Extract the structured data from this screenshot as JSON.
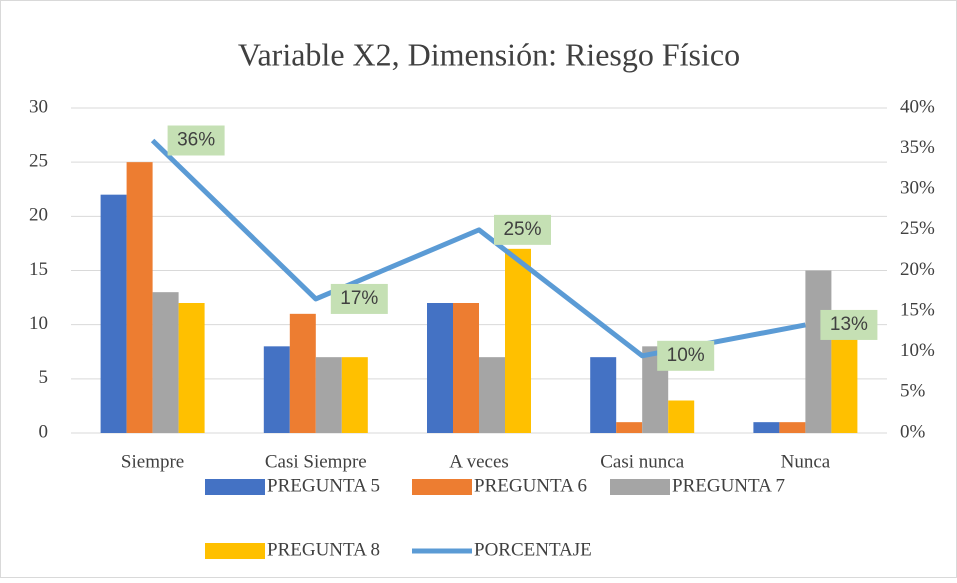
{
  "chart_data": {
    "type": "bar",
    "title": "Variable X2, Dimensión: Riesgo Físico",
    "categories": [
      "Siempre",
      "Casi Siempre",
      "A veces",
      "Casi nunca",
      "Nunca"
    ],
    "series": [
      {
        "name": "PREGUNTA 5",
        "color": "#4472c4",
        "values": [
          22,
          8,
          12,
          7,
          1
        ]
      },
      {
        "name": "PREGUNTA 6",
        "color": "#ed7d31",
        "values": [
          25,
          11,
          12,
          1,
          1
        ]
      },
      {
        "name": "PREGUNTA 7",
        "color": "#a5a5a5",
        "values": [
          13,
          7,
          7,
          8,
          15
        ]
      },
      {
        "name": "PREGUNTA 8",
        "color": "#ffc000",
        "values": [
          12,
          7,
          17,
          3,
          9
        ]
      },
      {
        "name": "PORCENTAJE",
        "color": "#5b9bd5",
        "type": "line",
        "axis": "y2",
        "values": [
          36,
          16.5,
          25,
          9.5,
          13.3
        ],
        "value_labels": [
          "36%",
          "17%",
          "25%",
          "10%",
          "13%"
        ]
      }
    ],
    "ylim": [
      0,
      30
    ],
    "yticks": [
      0,
      5,
      10,
      15,
      20,
      25,
      30
    ],
    "y2lim": [
      0,
      40
    ],
    "y2ticks": [
      {
        "value": 0,
        "label": "0%"
      },
      {
        "value": 5,
        "label": "5%"
      },
      {
        "value": 10,
        "label": "10%"
      },
      {
        "value": 15,
        "label": "15%"
      },
      {
        "value": 20,
        "label": "20%"
      },
      {
        "value": 25,
        "label": "25%"
      },
      {
        "value": 30,
        "label": "30%"
      },
      {
        "value": 35,
        "label": "35%"
      },
      {
        "value": 40,
        "label": "40%"
      }
    ],
    "grid": true,
    "legend": "bottom"
  }
}
